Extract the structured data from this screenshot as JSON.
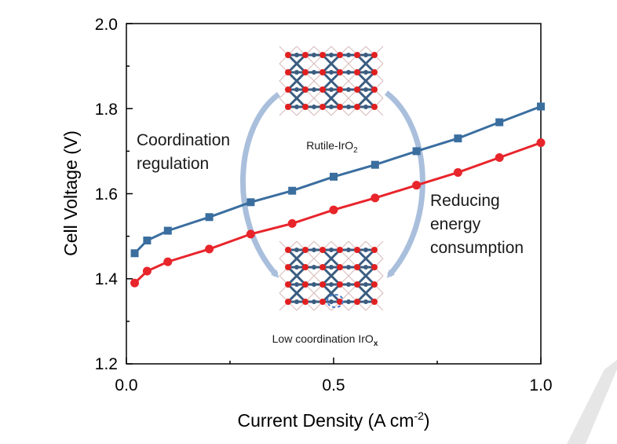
{
  "chart_data": {
    "type": "line",
    "title": "",
    "xlabel": "Current Density (A cm",
    "xlabel_sup": "-2",
    "xlabel_end": ")",
    "ylabel": "Cell Voltage (V)",
    "xlim": [
      0.0,
      1.0
    ],
    "ylim": [
      1.2,
      2.0
    ],
    "x_ticks": [
      {
        "value": 0.0,
        "label": "0.0"
      },
      {
        "value": 0.5,
        "label": "0.5"
      },
      {
        "value": 1.0,
        "label": "1.0"
      }
    ],
    "y_ticks": [
      {
        "value": 1.2,
        "label": "1.2"
      },
      {
        "value": 1.4,
        "label": "1.4"
      },
      {
        "value": 1.6,
        "label": "1.6"
      },
      {
        "value": 1.8,
        "label": "1.8"
      },
      {
        "value": 2.0,
        "label": "2.0"
      }
    ],
    "grid": false,
    "legend": "none",
    "series": [
      {
        "name": "Rutile-IrO2",
        "color": "#3a6e9f",
        "marker": "square",
        "x": [
          0.02,
          0.05,
          0.1,
          0.2,
          0.3,
          0.4,
          0.5,
          0.6,
          0.7,
          0.8,
          0.9,
          1.0
        ],
        "y": [
          1.46,
          1.49,
          1.513,
          1.545,
          1.58,
          1.607,
          1.64,
          1.668,
          1.7,
          1.73,
          1.768,
          1.805
        ]
      },
      {
        "name": "Low coordination IrOx",
        "color": "#e8252b",
        "marker": "circle",
        "x": [
          0.02,
          0.05,
          0.1,
          0.2,
          0.3,
          0.4,
          0.5,
          0.6,
          0.7,
          0.8,
          0.9,
          1.0
        ],
        "y": [
          1.39,
          1.418,
          1.44,
          1.47,
          1.505,
          1.53,
          1.562,
          1.59,
          1.62,
          1.65,
          1.685,
          1.72
        ]
      }
    ],
    "annotations": {
      "left_label": [
        "Coordination",
        "regulation"
      ],
      "right_label": [
        "Reducing",
        "energy",
        "consumption"
      ],
      "top_structure_label": "Rutile-IrO",
      "top_structure_sub": "2",
      "bottom_structure_label": "Low coordination IrO",
      "bottom_structure_sub": "x"
    }
  },
  "colors": {
    "axis": "#000000",
    "arrow": "#a9bfdc",
    "iridium": "#3a5c80",
    "oxygen": "#e02020",
    "vacancy": "#4a7fd0",
    "watermark": "#e6e6e6"
  }
}
